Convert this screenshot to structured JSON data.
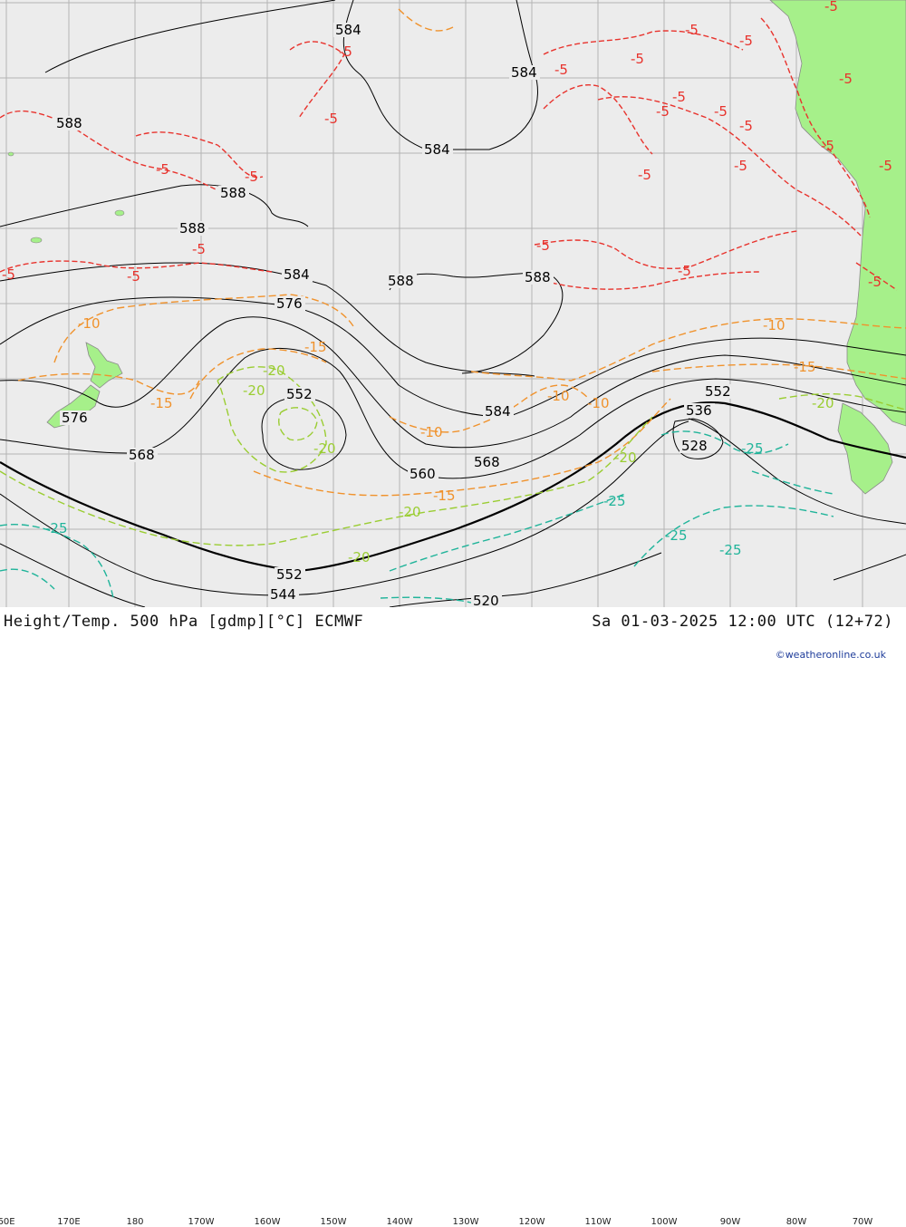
{
  "title_left": "Height/Temp. 500 hPa [gdmp][°C] ECMWF",
  "title_right": "Sa 01-03-2025 12:00 UTC (12+72)",
  "credit": "©weatheronline.co.uk",
  "longitude_labels": [
    "60E",
    "170E",
    "180",
    "170W",
    "160W",
    "150W",
    "140W",
    "130W",
    "120W",
    "110W",
    "100W",
    "90W",
    "80W",
    "70W"
  ],
  "colors": {
    "ocean": "#ececec",
    "land": "#a6f08a",
    "grid": "#b4b4b4",
    "height_contour": "#000000",
    "temp_minus5": "#e8332d",
    "temp_minus10_15": "#f0922c",
    "temp_minus20": "#9acd32",
    "temp_minus25": "#20b49a"
  },
  "height_labels": {
    "h584_a": "584",
    "h584_b": "584",
    "h584_c": "584",
    "h584_d": "584",
    "h584_e": "584",
    "h588_a": "588",
    "h588_b": "588",
    "h588_c": "588",
    "h588_d": "588",
    "h588_e": "588",
    "h576_a": "576",
    "h576_b": "576",
    "h568_a": "568",
    "h568_b": "568",
    "h560": "560",
    "h552_a": "552",
    "h552_b": "552",
    "h552_c": "552",
    "h544": "544",
    "h536": "536",
    "h528": "528",
    "h520": "520"
  },
  "temp_labels": {
    "m5": "-5",
    "m10": "-10",
    "m15": "-15",
    "m20": "-20",
    "m25": "-25"
  }
}
